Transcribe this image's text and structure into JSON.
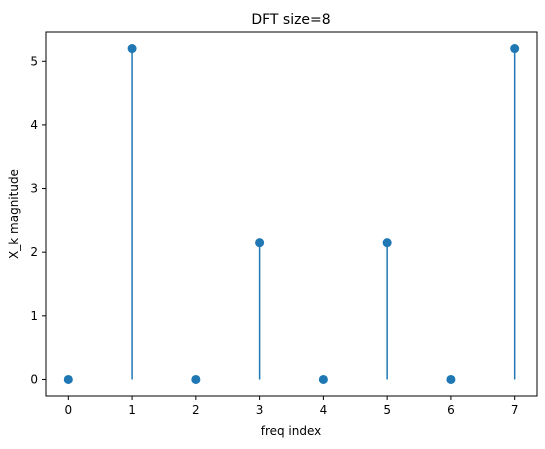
{
  "chart_data": {
    "type": "stem",
    "title": "DFT size=8",
    "xlabel": "freq index",
    "ylabel": "X_k magnitude",
    "x": [
      0,
      1,
      2,
      3,
      4,
      5,
      6,
      7
    ],
    "values": [
      0,
      5.2,
      0,
      2.15,
      0,
      2.15,
      0,
      5.2
    ],
    "xlim": [
      -0.35,
      7.35
    ],
    "ylim": [
      -0.26,
      5.46
    ],
    "xticks": [
      0,
      1,
      2,
      3,
      4,
      5,
      6,
      7
    ],
    "yticks": [
      0,
      1,
      2,
      3,
      4,
      5
    ],
    "grid": false,
    "color": "#1f77b4"
  }
}
